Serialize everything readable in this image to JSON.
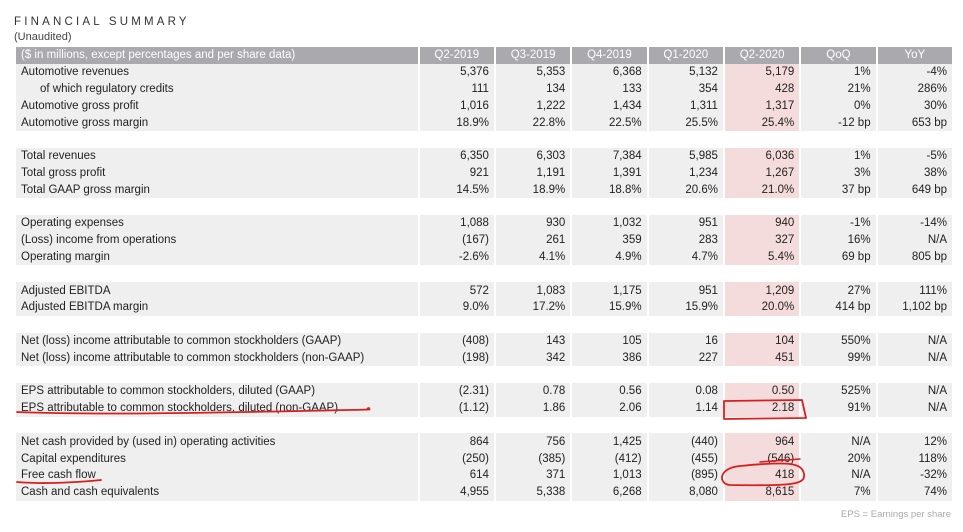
{
  "title": "FINANCIAL SUMMARY",
  "subtitle": "(Unaudited)",
  "table": {
    "header_label": "($ in millions, except percentages and per share data)",
    "columns": [
      "Q2-2019",
      "Q3-2019",
      "Q4-2019",
      "Q1-2020",
      "Q2-2020",
      "QoQ",
      "YoY"
    ],
    "highlight_column": "Q2-2020",
    "rows": [
      {
        "label": "Automotive revenues",
        "values": [
          "5,376",
          "5,353",
          "6,368",
          "5,132",
          "5,179",
          "1%",
          "-4%"
        ]
      },
      {
        "label": "of which regulatory credits",
        "indent": true,
        "values": [
          "111",
          "134",
          "133",
          "354",
          "428",
          "21%",
          "286%"
        ]
      },
      {
        "label": "Automotive gross profit",
        "values": [
          "1,016",
          "1,222",
          "1,434",
          "1,311",
          "1,317",
          "0%",
          "30%"
        ]
      },
      {
        "label": "Automotive gross margin",
        "values": [
          "18.9%",
          "22.8%",
          "22.5%",
          "25.5%",
          "25.4%",
          "-12 bp",
          "653 bp"
        ]
      },
      null,
      {
        "label": "Total revenues",
        "values": [
          "6,350",
          "6,303",
          "7,384",
          "5,985",
          "6,036",
          "1%",
          "-5%"
        ]
      },
      {
        "label": "Total gross profit",
        "values": [
          "921",
          "1,191",
          "1,391",
          "1,234",
          "1,267",
          "3%",
          "38%"
        ]
      },
      {
        "label": "Total GAAP gross margin",
        "values": [
          "14.5%",
          "18.9%",
          "18.8%",
          "20.6%",
          "21.0%",
          "37 bp",
          "649 bp"
        ]
      },
      null,
      {
        "label": "Operating expenses",
        "values": [
          "1,088",
          "930",
          "1,032",
          "951",
          "940",
          "-1%",
          "-14%"
        ]
      },
      {
        "label": "(Loss) income from operations",
        "values": [
          "(167)",
          "261",
          "359",
          "283",
          "327",
          "16%",
          "N/A"
        ]
      },
      {
        "label": "Operating margin",
        "values": [
          "-2.6%",
          "4.1%",
          "4.9%",
          "4.7%",
          "5.4%",
          "69 bp",
          "805 bp"
        ]
      },
      null,
      {
        "label": "Adjusted EBITDA",
        "values": [
          "572",
          "1,083",
          "1,175",
          "951",
          "1,209",
          "27%",
          "111%"
        ]
      },
      {
        "label": "Adjusted EBITDA margin",
        "values": [
          "9.0%",
          "17.2%",
          "15.9%",
          "15.9%",
          "20.0%",
          "414 bp",
          "1,102 bp"
        ]
      },
      null,
      {
        "label": "Net (loss) income attributable to common stockholders (GAAP)",
        "values": [
          "(408)",
          "143",
          "105",
          "16",
          "104",
          "550%",
          "N/A"
        ]
      },
      {
        "label": "Net (loss) income attributable to common stockholders (non-GAAP)",
        "values": [
          "(198)",
          "342",
          "386",
          "227",
          "451",
          "99%",
          "N/A"
        ]
      },
      null,
      {
        "label": "EPS attributable to common stockholders, diluted (GAAP)",
        "values": [
          "(2.31)",
          "0.78",
          "0.56",
          "0.08",
          "0.50",
          "525%",
          "N/A"
        ]
      },
      {
        "label": "EPS attributable to common stockholders, diluted (non-GAAP)",
        "values": [
          "(1.12)",
          "1.86",
          "2.06",
          "1.14",
          "2.18",
          "91%",
          "N/A"
        ]
      },
      null,
      {
        "label": "Net cash provided by (used in) operating activities",
        "values": [
          "864",
          "756",
          "1,425",
          "(440)",
          "964",
          "N/A",
          "12%"
        ]
      },
      {
        "label": "Capital expenditures",
        "values": [
          "(250)",
          "(385)",
          "(412)",
          "(455)",
          "(546)",
          "20%",
          "118%"
        ]
      },
      {
        "label": "Free cash flow",
        "values": [
          "614",
          "371",
          "1,013",
          "(895)",
          "418",
          "N/A",
          "-32%"
        ]
      },
      {
        "label": "Cash and cash equivalents",
        "values": [
          "4,955",
          "5,338",
          "6,268",
          "8,080",
          "8,615",
          "7%",
          "74%"
        ]
      }
    ]
  },
  "footnote": "EPS = Earnings per share",
  "annotation_color": "#d81f1f"
}
